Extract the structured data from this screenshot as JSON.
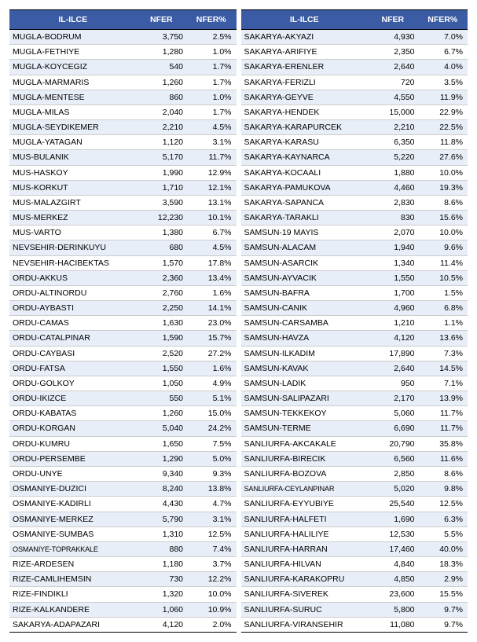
{
  "headers": {
    "ililce": "IL-ILCE",
    "nfer": "NFER",
    "nfer_pct": "NFER%"
  },
  "left": [
    {
      "n": "MUGLA-BODRUM",
      "v": "3,750",
      "p": "2.5%"
    },
    {
      "n": "MUGLA-FETHIYE",
      "v": "1,280",
      "p": "1.0%"
    },
    {
      "n": "MUGLA-KOYCEGIZ",
      "v": "540",
      "p": "1.7%"
    },
    {
      "n": "MUGLA-MARMARIS",
      "v": "1,260",
      "p": "1.7%"
    },
    {
      "n": "MUGLA-MENTESE",
      "v": "860",
      "p": "1.0%"
    },
    {
      "n": "MUGLA-MILAS",
      "v": "2,040",
      "p": "1.7%"
    },
    {
      "n": "MUGLA-SEYDIKEMER",
      "v": "2,210",
      "p": "4.5%"
    },
    {
      "n": "MUGLA-YATAGAN",
      "v": "1,120",
      "p": "3.1%"
    },
    {
      "n": "MUS-BULANIK",
      "v": "5,170",
      "p": "11.7%"
    },
    {
      "n": "MUS-HASKOY",
      "v": "1,990",
      "p": "12.9%"
    },
    {
      "n": "MUS-KORKUT",
      "v": "1,710",
      "p": "12.1%"
    },
    {
      "n": "MUS-MALAZGIRT",
      "v": "3,590",
      "p": "13.1%"
    },
    {
      "n": "MUS-MERKEZ",
      "v": "12,230",
      "p": "10.1%"
    },
    {
      "n": "MUS-VARTO",
      "v": "1,380",
      "p": "6.7%"
    },
    {
      "n": "NEVSEHIR-DERINKUYU",
      "v": "680",
      "p": "4.5%"
    },
    {
      "n": "NEVSEHIR-HACIBEKTAS",
      "v": "1,570",
      "p": "17.8%"
    },
    {
      "n": "ORDU-AKKUS",
      "v": "2,360",
      "p": "13.4%"
    },
    {
      "n": "ORDU-ALTINORDU",
      "v": "2,760",
      "p": "1.6%"
    },
    {
      "n": "ORDU-AYBASTI",
      "v": "2,250",
      "p": "14.1%"
    },
    {
      "n": "ORDU-CAMAS",
      "v": "1,630",
      "p": "23.0%"
    },
    {
      "n": "ORDU-CATALPINAR",
      "v": "1,590",
      "p": "15.7%"
    },
    {
      "n": "ORDU-CAYBASI",
      "v": "2,520",
      "p": "27.2%"
    },
    {
      "n": "ORDU-FATSA",
      "v": "1,550",
      "p": "1.6%"
    },
    {
      "n": "ORDU-GOLKOY",
      "v": "1,050",
      "p": "4.9%"
    },
    {
      "n": "ORDU-IKIZCE",
      "v": "550",
      "p": "5.1%"
    },
    {
      "n": "ORDU-KABATAS",
      "v": "1,260",
      "p": "15.0%"
    },
    {
      "n": "ORDU-KORGAN",
      "v": "5,040",
      "p": "24.2%"
    },
    {
      "n": "ORDU-KUMRU",
      "v": "1,650",
      "p": "7.5%"
    },
    {
      "n": "ORDU-PERSEMBE",
      "v": "1,290",
      "p": "5.0%"
    },
    {
      "n": "ORDU-UNYE",
      "v": "9,340",
      "p": "9.3%"
    },
    {
      "n": "OSMANIYE-DUZICI",
      "v": "8,240",
      "p": "13.8%"
    },
    {
      "n": "OSMANIYE-KADIRLI",
      "v": "4,430",
      "p": "4.7%"
    },
    {
      "n": "OSMANIYE-MERKEZ",
      "v": "5,790",
      "p": "3.1%"
    },
    {
      "n": "OSMANIYE-SUMBAS",
      "v": "1,310",
      "p": "12.5%"
    },
    {
      "n": "OSMANIYE-TOPRAKKALE",
      "v": "880",
      "p": "7.4%",
      "small": true
    },
    {
      "n": "RIZE-ARDESEN",
      "v": "1,180",
      "p": "3.7%"
    },
    {
      "n": "RIZE-CAMLIHEMSIN",
      "v": "730",
      "p": "12.2%"
    },
    {
      "n": "RIZE-FINDIKLI",
      "v": "1,320",
      "p": "10.0%"
    },
    {
      "n": "RIZE-KALKANDERE",
      "v": "1,060",
      "p": "10.9%"
    },
    {
      "n": "SAKARYA-ADAPAZARI",
      "v": "4,120",
      "p": "2.0%"
    }
  ],
  "right": [
    {
      "n": "SAKARYA-AKYAZI",
      "v": "4,930",
      "p": "7.0%"
    },
    {
      "n": "SAKARYA-ARIFIYE",
      "v": "2,350",
      "p": "6.7%"
    },
    {
      "n": "SAKARYA-ERENLER",
      "v": "2,640",
      "p": "4.0%"
    },
    {
      "n": "SAKARYA-FERIZLI",
      "v": "720",
      "p": "3.5%"
    },
    {
      "n": "SAKARYA-GEYVE",
      "v": "4,550",
      "p": "11.9%"
    },
    {
      "n": "SAKARYA-HENDEK",
      "v": "15,000",
      "p": "22.9%"
    },
    {
      "n": "SAKARYA-KARAPURCEK",
      "v": "2,210",
      "p": "22.5%"
    },
    {
      "n": "SAKARYA-KARASU",
      "v": "6,350",
      "p": "11.8%"
    },
    {
      "n": "SAKARYA-KAYNARCA",
      "v": "5,220",
      "p": "27.6%"
    },
    {
      "n": "SAKARYA-KOCAALI",
      "v": "1,880",
      "p": "10.0%"
    },
    {
      "n": "SAKARYA-PAMUKOVA",
      "v": "4,460",
      "p": "19.3%"
    },
    {
      "n": "SAKARYA-SAPANCA",
      "v": "2,830",
      "p": "8.6%"
    },
    {
      "n": "SAKARYA-TARAKLI",
      "v": "830",
      "p": "15.6%"
    },
    {
      "n": "SAMSUN-19 MAYIS",
      "v": "2,070",
      "p": "10.0%"
    },
    {
      "n": "SAMSUN-ALACAM",
      "v": "1,940",
      "p": "9.6%"
    },
    {
      "n": "SAMSUN-ASARCIK",
      "v": "1,340",
      "p": "11.4%"
    },
    {
      "n": "SAMSUN-AYVACIK",
      "v": "1,550",
      "p": "10.5%"
    },
    {
      "n": "SAMSUN-BAFRA",
      "v": "1,700",
      "p": "1.5%"
    },
    {
      "n": "SAMSUN-CANIK",
      "v": "4,960",
      "p": "6.8%"
    },
    {
      "n": "SAMSUN-CARSAMBA",
      "v": "1,210",
      "p": "1.1%"
    },
    {
      "n": "SAMSUN-HAVZA",
      "v": "4,120",
      "p": "13.6%"
    },
    {
      "n": "SAMSUN-ILKADIM",
      "v": "17,890",
      "p": "7.3%"
    },
    {
      "n": "SAMSUN-KAVAK",
      "v": "2,640",
      "p": "14.5%"
    },
    {
      "n": "SAMSUN-LADIK",
      "v": "950",
      "p": "7.1%"
    },
    {
      "n": "SAMSUN-SALIPAZARI",
      "v": "2,170",
      "p": "13.9%"
    },
    {
      "n": "SAMSUN-TEKKEKOY",
      "v": "5,060",
      "p": "11.7%"
    },
    {
      "n": "SAMSUN-TERME",
      "v": "6,690",
      "p": "11.7%"
    },
    {
      "n": "SANLIURFA-AKCAKALE",
      "v": "20,790",
      "p": "35.8%"
    },
    {
      "n": "SANLIURFA-BIRECIK",
      "v": "6,560",
      "p": "11.6%"
    },
    {
      "n": "SANLIURFA-BOZOVA",
      "v": "2,850",
      "p": "8.6%"
    },
    {
      "n": "SANLIURFA-CEYLANPINAR",
      "v": "5,020",
      "p": "9.8%",
      "small": true
    },
    {
      "n": "SANLIURFA-EYYUBIYE",
      "v": "25,540",
      "p": "12.5%"
    },
    {
      "n": "SANLIURFA-HALFETI",
      "v": "1,690",
      "p": "6.3%"
    },
    {
      "n": "SANLIURFA-HALILIYE",
      "v": "12,530",
      "p": "5.5%"
    },
    {
      "n": "SANLIURFA-HARRAN",
      "v": "17,460",
      "p": "40.0%"
    },
    {
      "n": "SANLIURFA-HILVAN",
      "v": "4,840",
      "p": "18.3%"
    },
    {
      "n": "SANLIURFA-KARAKOPRU",
      "v": "4,850",
      "p": "2.9%"
    },
    {
      "n": "SANLIURFA-SIVEREK",
      "v": "23,600",
      "p": "15.5%"
    },
    {
      "n": "SANLIURFA-SURUC",
      "v": "5,800",
      "p": "9.7%"
    },
    {
      "n": "SANLIURFA-VIRANSEHIR",
      "v": "11,080",
      "p": "9.7%"
    }
  ]
}
